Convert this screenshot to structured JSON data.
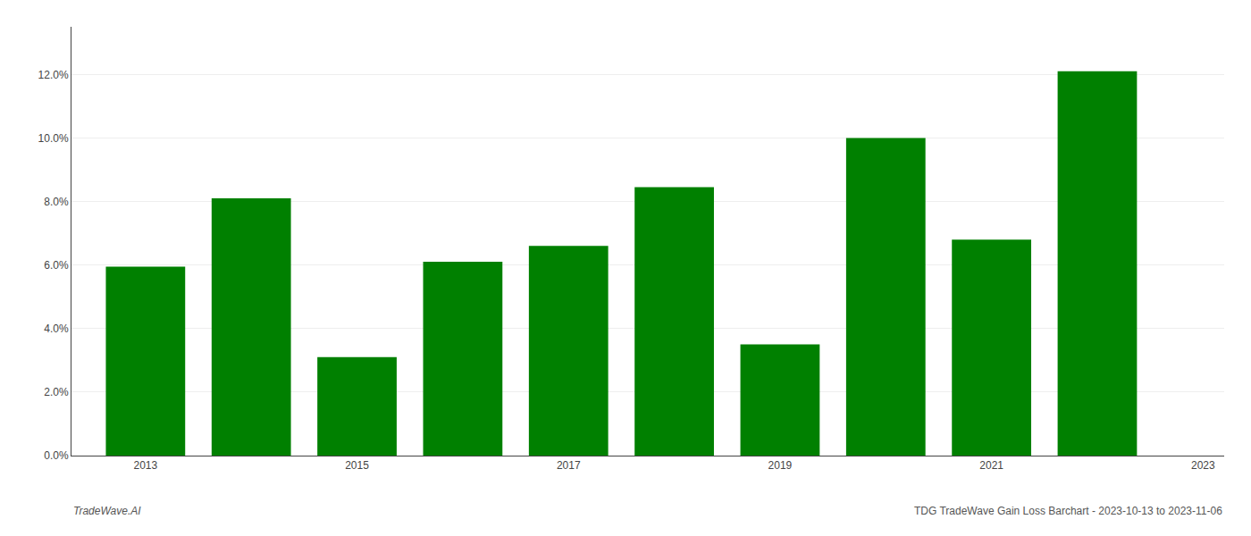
{
  "chart_data": {
    "type": "bar",
    "x": [
      2013,
      2014,
      2015,
      2016,
      2017,
      2018,
      2019,
      2020,
      2021,
      2022
    ],
    "values": [
      0.0595,
      0.081,
      0.031,
      0.061,
      0.066,
      0.0845,
      0.035,
      0.1,
      0.068,
      0.121
    ],
    "color": "#008000",
    "xlim": [
      2012.3,
      2023.2
    ],
    "xticks": [
      2013,
      2015,
      2017,
      2019,
      2021,
      2023
    ],
    "ylim": [
      0.0,
      0.135
    ],
    "yticks": [
      {
        "value": 0.0,
        "label": "0.0%"
      },
      {
        "value": 0.02,
        "label": "2.0%"
      },
      {
        "value": 0.04,
        "label": "4.0%"
      },
      {
        "value": 0.06,
        "label": "6.0%"
      },
      {
        "value": 0.08,
        "label": "8.0%"
      },
      {
        "value": 0.1,
        "label": "10.0%"
      },
      {
        "value": 0.12,
        "label": "12.0%"
      }
    ],
    "grid": true,
    "annotations": [
      "TradeWave.AI",
      "TDG TradeWave Gain Loss Barchart - 2023-10-13 to 2023-11-06"
    ]
  }
}
